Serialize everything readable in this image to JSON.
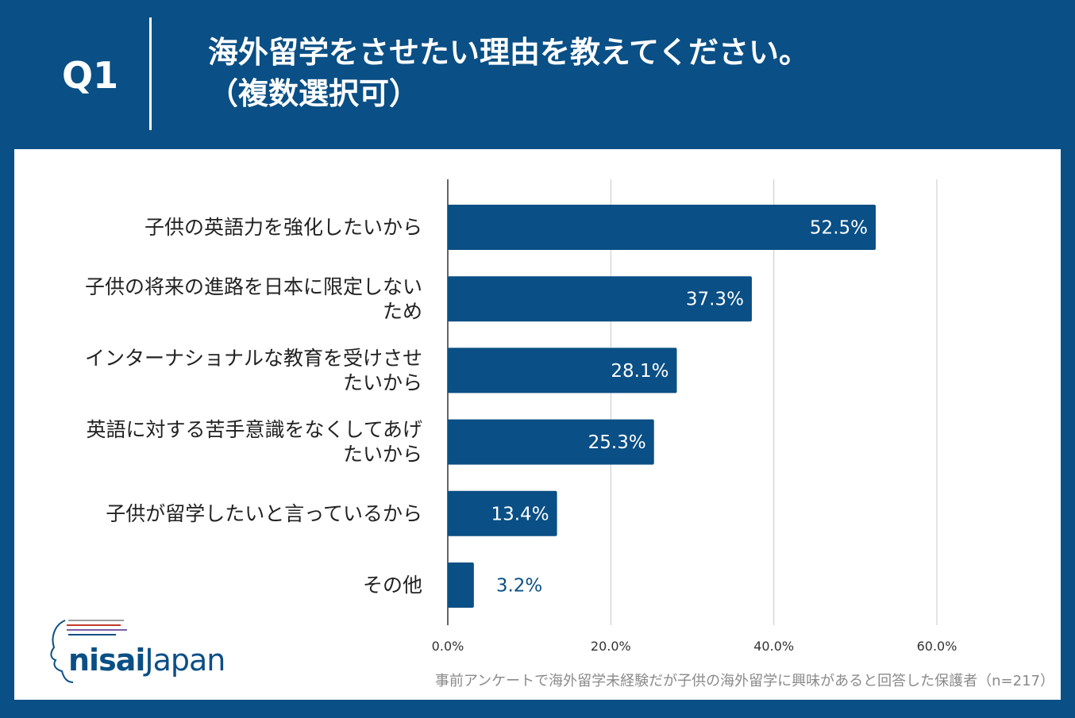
{
  "header": {
    "q_label": "Q1",
    "title_line1": "海外留学をさせたい理由を教えてください。",
    "title_line2": "（複数選択可）"
  },
  "colors": {
    "background": "#0a4f85",
    "bar": "#0a4f85",
    "grid": "#c8c8c8",
    "panel": "#ffffff"
  },
  "chart_data": {
    "type": "bar",
    "orientation": "horizontal",
    "categories": [
      "子供の英語力を強化したいから",
      "子供の将来の進路を日本に限定しないため",
      "インターナショナルな教育を受けさせたいから",
      "英語に対する苦手意識をなくしてあげたいから",
      "子供が留学したいと言っているから",
      "その他"
    ],
    "category_lines": [
      [
        "子供の英語力を強化したいから"
      ],
      [
        "子供の将来の進路を日本に限定しない",
        "ため"
      ],
      [
        "インターナショナルな教育を受けさせ",
        "たいから"
      ],
      [
        "英語に対する苦手意識をなくしてあげ",
        "たいから"
      ],
      [
        "子供が留学したいと言っているから"
      ],
      [
        "その他"
      ]
    ],
    "values": [
      52.5,
      37.3,
      28.1,
      25.3,
      13.4,
      3.2
    ],
    "value_labels": [
      "52.5%",
      "37.3%",
      "28.1%",
      "25.3%",
      "13.4%",
      "3.2%"
    ],
    "xlim": [
      0,
      60
    ],
    "xticks": [
      0,
      20,
      40,
      60
    ],
    "xtick_labels": [
      "0.0%",
      "20.0%",
      "40.0%",
      "60.0%"
    ],
    "grid": true
  },
  "footnote": "事前アンケートで海外留学未経験だが子供の海外留学に興味があると回答した保護者（n=217）",
  "logo": {
    "bold": "nisai",
    "light": "Japan"
  }
}
